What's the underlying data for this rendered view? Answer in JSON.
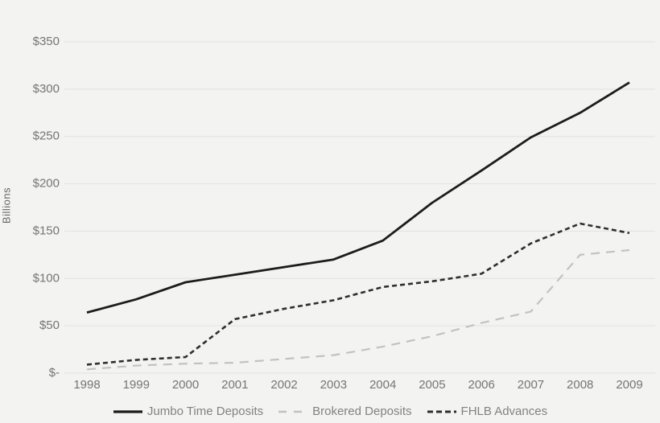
{
  "chart_data": {
    "type": "line",
    "title": "",
    "xlabel": "",
    "ylabel": "Billions",
    "ylim": [
      0,
      350
    ],
    "grid": "horizontal",
    "legend_position": "bottom",
    "x": [
      "1998",
      "1999",
      "2000",
      "2001",
      "2002",
      "2003",
      "2004",
      "2005",
      "2006",
      "2007",
      "2008",
      "2009"
    ],
    "series": [
      {
        "name": "Jumbo Time Deposits",
        "line_style": "solid",
        "color": "#1c1c1c",
        "values": [
          64,
          78,
          96,
          104,
          112,
          120,
          140,
          180,
          214,
          249,
          275,
          307
        ]
      },
      {
        "name": "Brokered Deposits",
        "line_style": "long-dash",
        "color": "#c2c2c2",
        "values": [
          4,
          8,
          10,
          11,
          15,
          19,
          28,
          39,
          53,
          65,
          125,
          130
        ]
      },
      {
        "name": "FHLB Advances",
        "line_style": "short-dash",
        "color": "#2f2f2f",
        "values": [
          9,
          14,
          17,
          57,
          68,
          77,
          91,
          97,
          105,
          137,
          158,
          148
        ]
      }
    ],
    "y_ticks": [
      {
        "value": 0,
        "label": "$-"
      },
      {
        "value": 50,
        "label": "$50"
      },
      {
        "value": 100,
        "label": "$100"
      },
      {
        "value": 150,
        "label": "$150"
      },
      {
        "value": 200,
        "label": "$200"
      },
      {
        "value": 250,
        "label": "$250"
      },
      {
        "value": 300,
        "label": "$300"
      },
      {
        "value": 350,
        "label": "$350"
      }
    ]
  },
  "colors": {
    "background": "#f3f3f2",
    "gridline": "#e1e1e0",
    "tick_text": "#757575",
    "axis_title_text": "#666666",
    "legend_text": "#828282"
  }
}
